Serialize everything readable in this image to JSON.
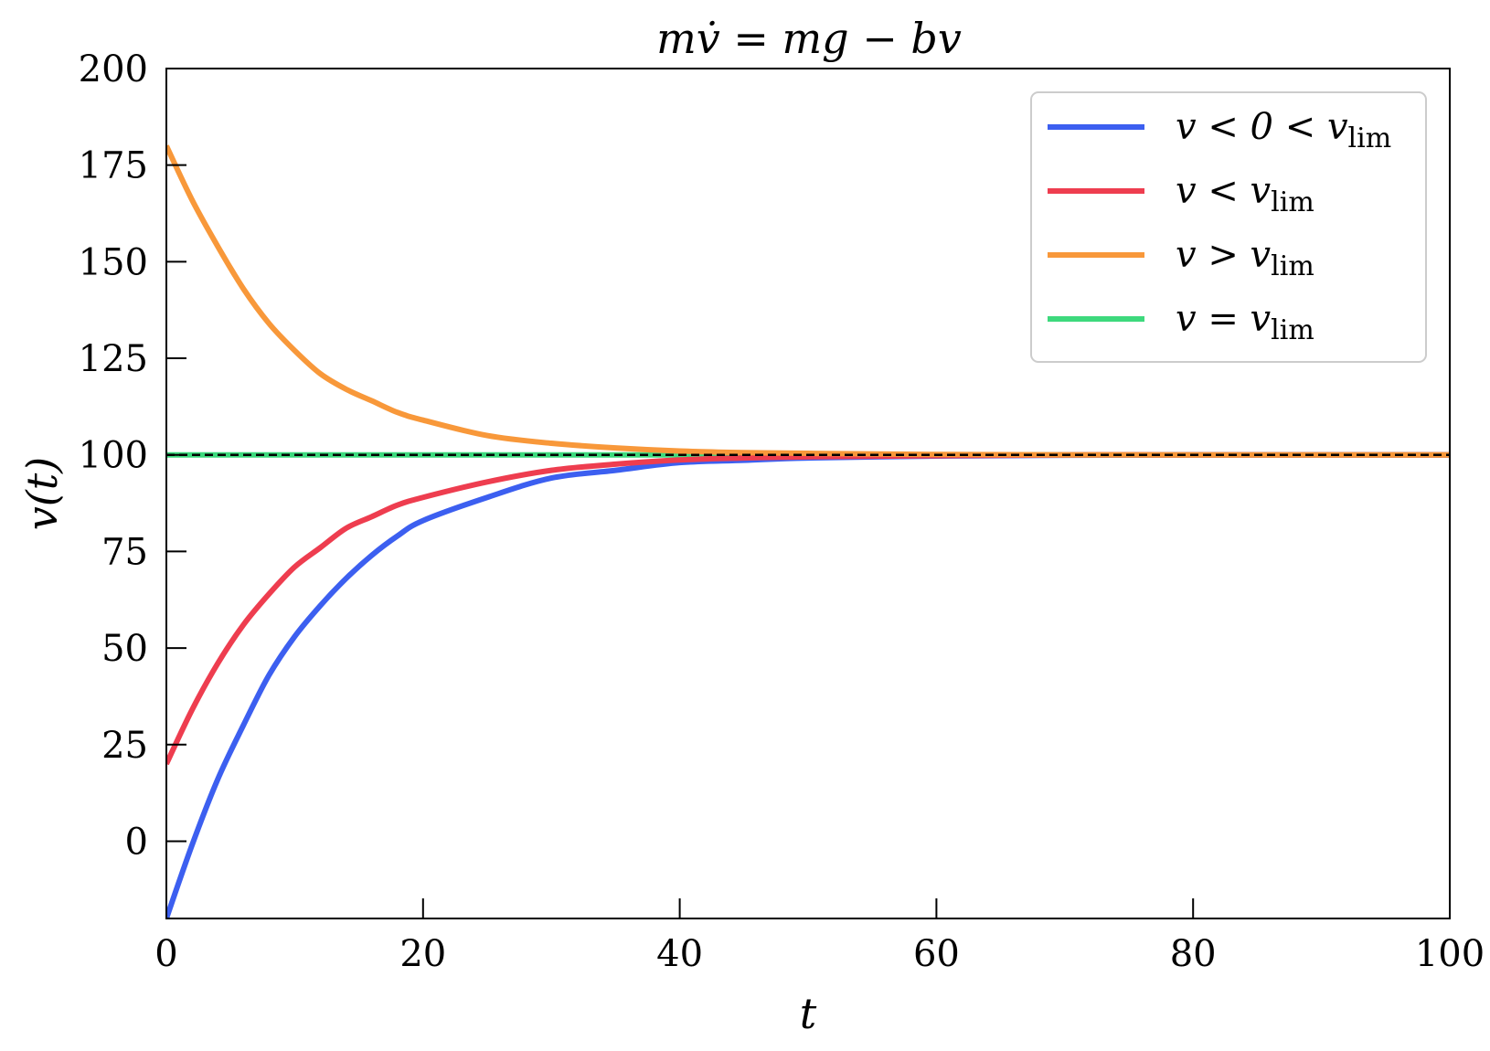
{
  "chart_data": {
    "type": "line",
    "title": "mv̇ = mg − bv",
    "xlabel": "t",
    "ylabel": "v(t)",
    "xlim": [
      0,
      100
    ],
    "ylim": [
      -20,
      200
    ],
    "xticks": [
      0,
      20,
      40,
      60,
      80,
      100
    ],
    "yticks": [
      0,
      25,
      50,
      75,
      100,
      125,
      150,
      175,
      200
    ],
    "grid": false,
    "legend_position": "top-right",
    "limit_line": {
      "y": 100,
      "style": "dashed",
      "color": "#000000"
    },
    "series": [
      {
        "name": "v < 0 < v_lim",
        "legend_main": "v < 0 < v",
        "legend_sub": "lim",
        "color": "#3c5ff0",
        "x": [
          0,
          2,
          4,
          6,
          8,
          10,
          12,
          14,
          16,
          18,
          20,
          25,
          30,
          35,
          40,
          45,
          50,
          60,
          70,
          80,
          90,
          100
        ],
        "y": [
          -20,
          -1,
          16,
          30,
          43,
          53,
          61,
          68,
          74,
          79,
          83,
          89,
          94,
          96,
          98,
          98.6,
          99.2,
          99.7,
          99.9,
          100,
          100,
          100
        ]
      },
      {
        "name": "v < v_lim",
        "legend_main": "v < v",
        "legend_sub": "lim",
        "color": "#ee3d4f",
        "x": [
          0,
          2,
          4,
          6,
          8,
          10,
          12,
          14,
          16,
          18,
          20,
          25,
          30,
          35,
          40,
          45,
          50,
          60,
          70,
          80,
          90,
          100
        ],
        "y": [
          20,
          34,
          46,
          56,
          64,
          71,
          76,
          81,
          84,
          87,
          89,
          93,
          96,
          97.6,
          98.7,
          99.2,
          99.5,
          99.8,
          100,
          100,
          100,
          100
        ]
      },
      {
        "name": "v > v_lim",
        "legend_main": "v > v",
        "legend_sub": "lim",
        "color": "#f8983a",
        "x": [
          0,
          2,
          4,
          6,
          8,
          10,
          12,
          14,
          16,
          18,
          20,
          25,
          30,
          35,
          40,
          45,
          50,
          60,
          70,
          80,
          90,
          100
        ],
        "y": [
          180,
          166,
          154,
          143,
          134,
          127,
          121,
          117,
          114,
          111,
          109,
          105,
          103,
          101.8,
          101,
          100.6,
          100.4,
          100.1,
          100,
          100,
          100,
          100
        ]
      },
      {
        "name": "v = v_lim",
        "legend_main": "v = v",
        "legend_sub": "lim",
        "color": "#3dd97d",
        "x": [
          0,
          100
        ],
        "y": [
          100,
          100
        ]
      }
    ]
  }
}
